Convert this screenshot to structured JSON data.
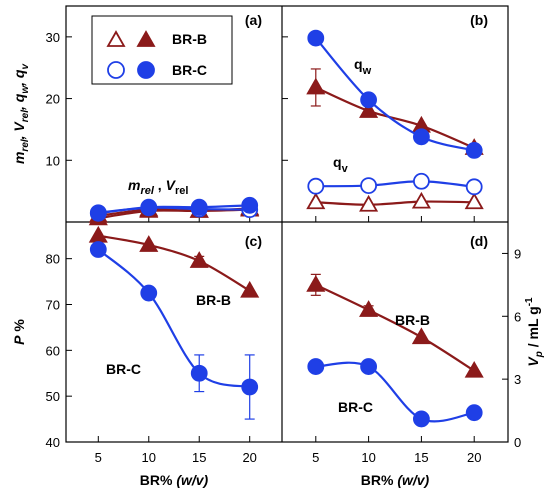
{
  "colors": {
    "brb": "#8b1a1a",
    "brc": "#1f3fe6"
  },
  "legend": {
    "brb": "BR-B",
    "brc": "BR-C"
  },
  "x_axis_label_main": "BR%",
  "x_axis_label_unit": "(w/v)",
  "chart_data": [
    {
      "panel": "a",
      "tag": "(a)",
      "type": "line",
      "ylabel": "m_rel, V_rel, q_w, q_v",
      "ylim": [
        0,
        35
      ],
      "yticks": [
        10,
        20,
        30
      ],
      "x": [
        5,
        10,
        15,
        20
      ],
      "annotation": {
        "m": "m",
        "m_sub": "rel",
        "sep": " , ",
        "v": "V",
        "v_sub": "rel"
      },
      "series": [
        {
          "name": "BR-B",
          "kind": "m_rel",
          "values": [
            1.0,
            2.0,
            1.8,
            2.0
          ],
          "filled": false
        },
        {
          "name": "BR-B",
          "kind": "V_rel",
          "values": [
            0.6,
            1.8,
            1.8,
            2.2
          ],
          "filled": true
        },
        {
          "name": "BR-C",
          "kind": "m_rel",
          "values": [
            1.5,
            2.3,
            2.1,
            2.0
          ],
          "filled": false
        },
        {
          "name": "BR-C",
          "kind": "V_rel",
          "values": [
            1.4,
            2.4,
            2.4,
            2.7
          ],
          "filled": true
        }
      ]
    },
    {
      "panel": "b",
      "tag": "(b)",
      "type": "line",
      "ylim": [
        0,
        35
      ],
      "yticks": [
        10,
        20,
        30
      ],
      "x": [
        5,
        10,
        15,
        20
      ],
      "labels": {
        "qw": "q",
        "qw_sub": "w",
        "qv": "q",
        "qv_sub": "v"
      },
      "series": [
        {
          "name": "BR-B",
          "kind": "q_w",
          "values": [
            21.8,
            18.0,
            15.6,
            12.0
          ],
          "err": [
            3.0,
            0,
            0,
            0
          ],
          "filled": true
        },
        {
          "name": "BR-C",
          "kind": "q_w",
          "values": [
            29.8,
            19.8,
            13.8,
            11.6
          ],
          "err": [
            0,
            0,
            0,
            0
          ],
          "filled": true
        },
        {
          "name": "BR-B",
          "kind": "q_v",
          "values": [
            3.2,
            2.8,
            3.3,
            3.2
          ],
          "err": [
            0,
            0,
            0,
            0
          ],
          "filled": false
        },
        {
          "name": "BR-C",
          "kind": "q_v",
          "values": [
            5.8,
            5.9,
            6.6,
            5.7
          ],
          "err": [
            0,
            0,
            1.0,
            0
          ],
          "filled": false
        }
      ]
    },
    {
      "panel": "c",
      "tag": "(c)",
      "type": "line",
      "ylabel": "P %",
      "ylim": [
        40,
        88
      ],
      "yticks": [
        40,
        50,
        60,
        70,
        80
      ],
      "x": [
        5,
        10,
        15,
        20
      ],
      "series_labels": {
        "brb": "BR-B",
        "brc": "BR-C"
      },
      "series": [
        {
          "name": "BR-B",
          "values": [
            85.0,
            83.0,
            79.5,
            73.0
          ],
          "err": [
            0,
            0,
            1.0,
            0
          ]
        },
        {
          "name": "BR-C",
          "values": [
            82.0,
            72.5,
            55.0,
            52.0
          ],
          "err": [
            0,
            1.0,
            4.0,
            7.0
          ]
        }
      ]
    },
    {
      "panel": "d",
      "tag": "(d)",
      "type": "line",
      "ylabel": "V_p / mL g^-1",
      "ylim": [
        0,
        10.5
      ],
      "yticks": [
        0,
        3,
        6,
        9
      ],
      "x": [
        5,
        10,
        15,
        20
      ],
      "series_labels": {
        "brb": "BR-B",
        "brc": "BR-C"
      },
      "series": [
        {
          "name": "BR-B",
          "values": [
            7.5,
            6.3,
            5.0,
            3.4
          ],
          "err": [
            0.5,
            0.2,
            0,
            0
          ]
        },
        {
          "name": "BR-C",
          "values": [
            3.6,
            3.6,
            1.1,
            1.4
          ],
          "err": [
            0,
            0,
            0,
            0
          ]
        }
      ]
    }
  ]
}
